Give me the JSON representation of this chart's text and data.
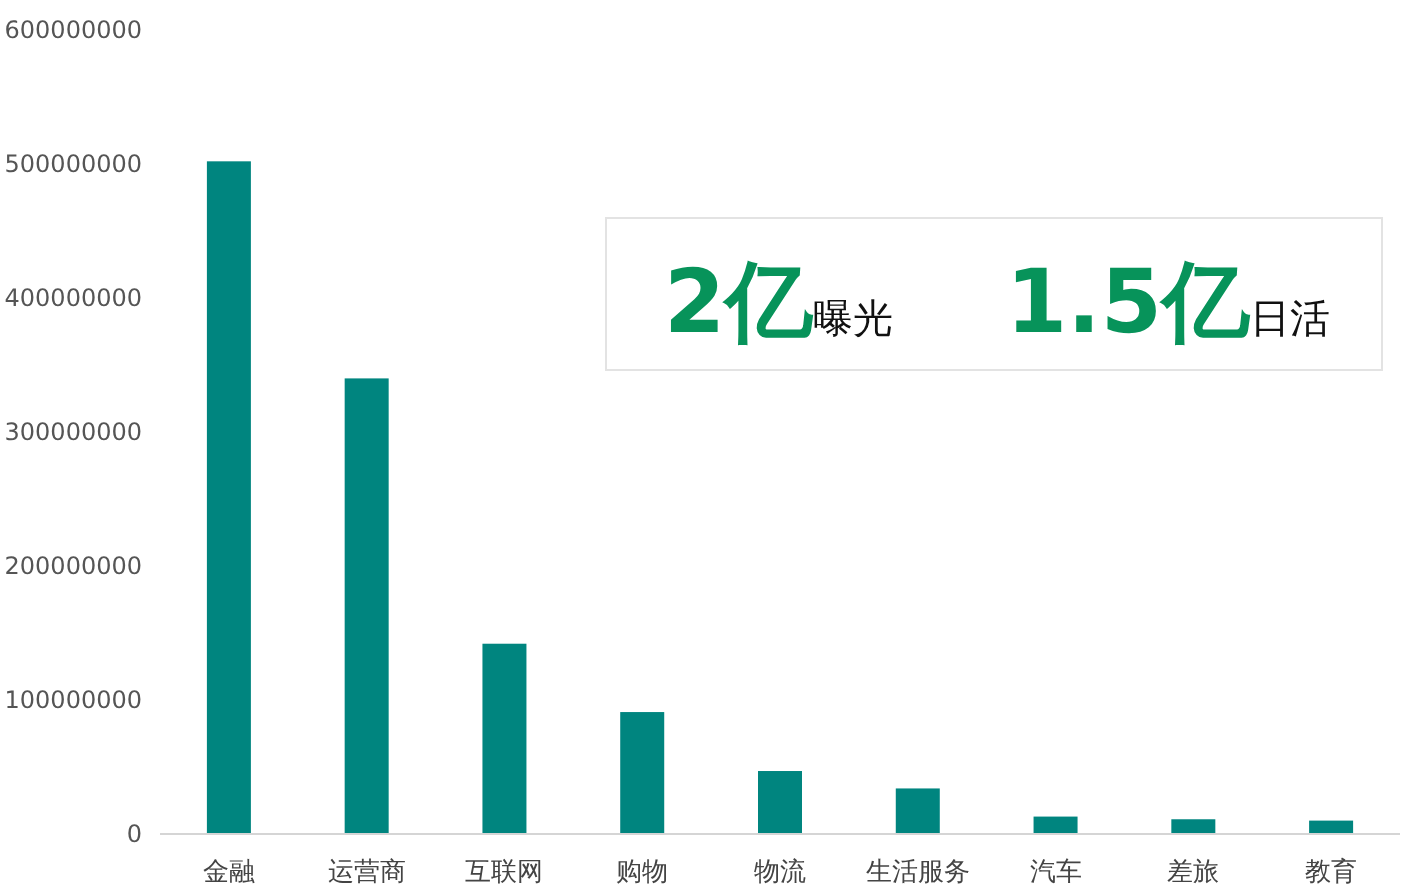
{
  "chart_data": {
    "type": "bar",
    "categories": [
      "金融",
      "运营商",
      "互联网",
      "购物",
      "物流",
      "生活服务",
      "汽车",
      "差旅",
      "教育"
    ],
    "series": [
      {
        "color": "#00857f",
        "values": [
          502000000,
          340000000,
          142000000,
          91000000,
          47000000,
          34000000,
          13000000,
          11000000,
          10000000
        ]
      }
    ],
    "ylim": [
      0,
      600000000
    ],
    "yticks": [
      0,
      100000000,
      200000000,
      300000000,
      400000000,
      500000000,
      600000000
    ],
    "annotations": [
      "2亿",
      "曝光",
      "1.5亿",
      "日活"
    ]
  }
}
